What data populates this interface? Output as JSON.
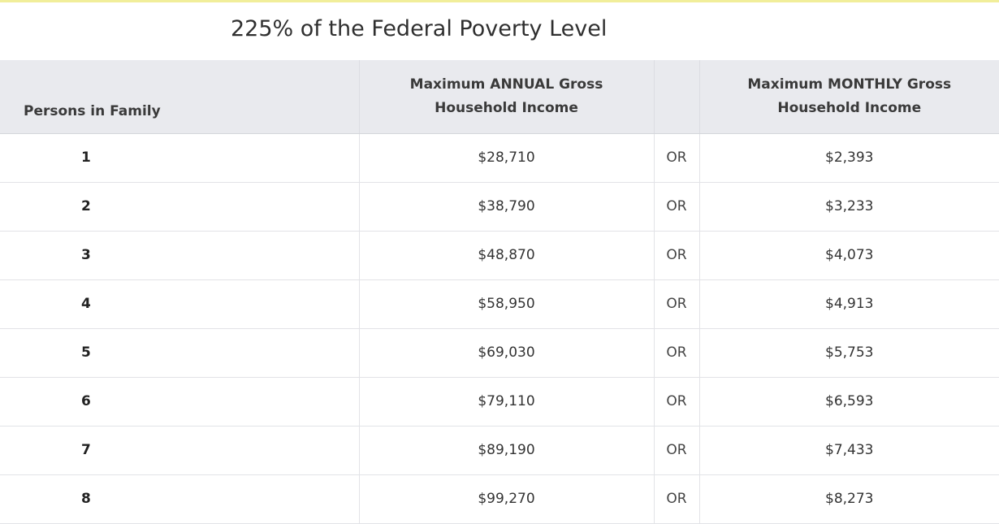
{
  "page": {
    "title": "225% of the Federal Poverty Level",
    "accent_color": "#f1ee9a",
    "header_bg_color": "#e9eaee"
  },
  "table": {
    "headers": [
      "Persons in Family",
      "Maximum ANNUAL Gross Household Income",
      "",
      "Maximum MONTHLY Gross Household Income"
    ],
    "rows": [
      {
        "persons": "1",
        "annual": "$28,710",
        "or": "OR",
        "monthly": "$2,393"
      },
      {
        "persons": "2",
        "annual": "$38,790",
        "or": "OR",
        "monthly": "$3,233"
      },
      {
        "persons": "3",
        "annual": "$48,870",
        "or": "OR",
        "monthly": "$4,073"
      },
      {
        "persons": "4",
        "annual": "$58,950",
        "or": "OR",
        "monthly": "$4,913"
      },
      {
        "persons": "5",
        "annual": "$69,030",
        "or": "OR",
        "monthly": "$5,753"
      },
      {
        "persons": "6",
        "annual": "$79,110",
        "or": "OR",
        "monthly": "$6,593"
      },
      {
        "persons": "7",
        "annual": "$89,190",
        "or": "OR",
        "monthly": "$7,433"
      },
      {
        "persons": "8",
        "annual": "$99,270",
        "or": "OR",
        "monthly": "$8,273"
      }
    ]
  }
}
